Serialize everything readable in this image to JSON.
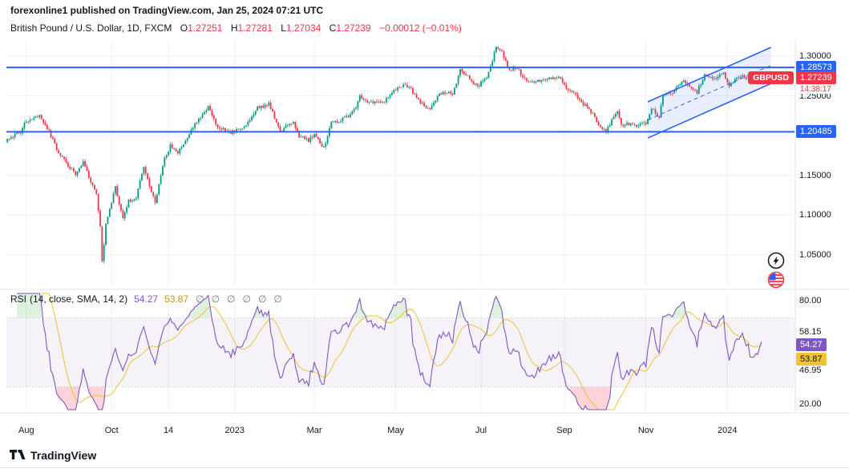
{
  "publish_line": "forexonline1 published on TradingView.com, Jan 25, 2024 07:21 UTC",
  "header": {
    "symbol_title": "British Pound / U.S. Dollar, 1D, FXCM",
    "ohlc": {
      "o_label": "O",
      "o": "1.27251",
      "h_label": "H",
      "h": "1.27281",
      "l_label": "L",
      "l": "1.27034",
      "c_label": "C",
      "c": "1.27239",
      "change": "−0.00012 (−0.01%)"
    }
  },
  "price_axis": {
    "ticks": [
      "1.30000",
      "1.25000",
      "1.20000",
      "1.15000",
      "1.10000",
      "1.05000"
    ],
    "tick_values": [
      1.3,
      1.25,
      1.2,
      1.15,
      1.1,
      1.05
    ]
  },
  "levels": {
    "upper": {
      "label": "1.28573",
      "value": 1.28573
    },
    "lower": {
      "label": "1.20485",
      "value": 1.20485
    }
  },
  "last_price": {
    "symbol_label": "GBPUSD",
    "price_label": "1.27239",
    "value": 1.27239,
    "countdown": "14:38:17"
  },
  "time_axis": {
    "labels": [
      {
        "text": "Aug",
        "date": "2022-08-01"
      },
      {
        "text": "Oct",
        "date": "2022-10-03"
      },
      {
        "text": "14",
        "date": "2022-11-14"
      },
      {
        "text": "2023",
        "date": "2023-01-02"
      },
      {
        "text": "Mar",
        "date": "2023-03-01"
      },
      {
        "text": "May",
        "date": "2023-05-01"
      },
      {
        "text": "Jul",
        "date": "2023-07-03"
      },
      {
        "text": "Sep",
        "date": "2023-09-01"
      },
      {
        "text": "Nov",
        "date": "2023-11-01"
      },
      {
        "text": "2024",
        "date": "2024-01-01"
      }
    ]
  },
  "channel": {
    "start_date": "2023-11-02",
    "end_date": "2024-02-01",
    "lower_start": 1.197,
    "lower_end": 1.2655,
    "width": 0.0455
  },
  "rsi": {
    "title": "RSI",
    "params": "(14, close, SMA, 14, 2)",
    "value": "54.27",
    "ma_value": "53.87",
    "value_num": 54.27,
    "ma_num": 53.87,
    "upper_band": 70,
    "lower_band": 30,
    "axis_ticks": [
      {
        "text": "80.00",
        "value": 80
      },
      {
        "text": "20.00",
        "value": 20
      }
    ],
    "band_labels": [
      {
        "text": "58.15",
        "value": 58.15
      },
      {
        "text": "46.95",
        "value": 46.95
      }
    ],
    "setting_icons": [
      "∅",
      "∅",
      "∅",
      "∅",
      "∅",
      "∅"
    ]
  },
  "footer": {
    "brand": "TradingView"
  },
  "colors": {
    "up": "#089981",
    "down": "#F23645",
    "accent_blue": "#2962FF",
    "channel_fill": "rgba(41,98,255,0.10)",
    "grid": "rgba(42,46,57,0.07)",
    "separator": "#E0E3EB",
    "rsi_line": "#7E57C2",
    "rsi_ma": "#F1C232",
    "rsi_band_fill": "rgba(126,87,194,0.08)",
    "oversold_fill": "rgba(242,54,69,0.22)",
    "overbought_fill": "rgba(76,175,80,0.18)",
    "muted_text": "#787B86",
    "axis_text": "#131722",
    "red": "#F23645"
  },
  "chart_data": {
    "type": "candlestick",
    "symbol": "GBPUSD",
    "timeframe": "1D",
    "exchange": "FXCM",
    "start_date": "2022-07-18",
    "end_date": "2024-01-25",
    "ylim": [
      1.013,
      1.322
    ],
    "price_gridlines": [
      1.3,
      1.25,
      1.2,
      1.15,
      1.1,
      1.05
    ],
    "ohlc_last": {
      "open": 1.27251,
      "high": 1.27281,
      "low": 1.27034,
      "close": 1.27239
    },
    "keypoints": [
      [
        "2022-07-18",
        1.196
      ],
      [
        "2022-07-27",
        1.204
      ],
      [
        "2022-08-01",
        1.219
      ],
      [
        "2022-08-10",
        1.224
      ],
      [
        "2022-08-17",
        1.205
      ],
      [
        "2022-08-23",
        1.183
      ],
      [
        "2022-08-31",
        1.162
      ],
      [
        "2022-09-06",
        1.152
      ],
      [
        "2022-09-12",
        1.168
      ],
      [
        "2022-09-16",
        1.142
      ],
      [
        "2022-09-21",
        1.127
      ],
      [
        "2022-09-23",
        1.086
      ],
      [
        "2022-09-26",
        1.04
      ],
      [
        "2022-09-28",
        1.089
      ],
      [
        "2022-10-05",
        1.135
      ],
      [
        "2022-10-11",
        1.097
      ],
      [
        "2022-10-14",
        1.118
      ],
      [
        "2022-10-20",
        1.122
      ],
      [
        "2022-10-26",
        1.161
      ],
      [
        "2022-11-03",
        1.116
      ],
      [
        "2022-11-10",
        1.171
      ],
      [
        "2022-11-15",
        1.187
      ],
      [
        "2022-11-21",
        1.179
      ],
      [
        "2022-11-30",
        1.206
      ],
      [
        "2022-12-05",
        1.219
      ],
      [
        "2022-12-13",
        1.236
      ],
      [
        "2022-12-20",
        1.211
      ],
      [
        "2022-12-29",
        1.204
      ],
      [
        "2023-01-06",
        1.209
      ],
      [
        "2023-01-13",
        1.223
      ],
      [
        "2023-01-18",
        1.235
      ],
      [
        "2023-01-26",
        1.24
      ],
      [
        "2023-02-03",
        1.205
      ],
      [
        "2023-02-09",
        1.212
      ],
      [
        "2023-02-14",
        1.217
      ],
      [
        "2023-02-17",
        1.199
      ],
      [
        "2023-02-24",
        1.194
      ],
      [
        "2023-03-01",
        1.202
      ],
      [
        "2023-03-08",
        1.184
      ],
      [
        "2023-03-14",
        1.216
      ],
      [
        "2023-03-17",
        1.218
      ],
      [
        "2023-03-24",
        1.223
      ],
      [
        "2023-03-31",
        1.233
      ],
      [
        "2023-04-04",
        1.25
      ],
      [
        "2023-04-10",
        1.241
      ],
      [
        "2023-04-14",
        1.241
      ],
      [
        "2023-04-21",
        1.244
      ],
      [
        "2023-04-28",
        1.257
      ],
      [
        "2023-05-05",
        1.263
      ],
      [
        "2023-05-10",
        1.262
      ],
      [
        "2023-05-18",
        1.241
      ],
      [
        "2023-05-25",
        1.232
      ],
      [
        "2023-06-01",
        1.252
      ],
      [
        "2023-06-08",
        1.256
      ],
      [
        "2023-06-12",
        1.251
      ],
      [
        "2023-06-16",
        1.282
      ],
      [
        "2023-06-23",
        1.272
      ],
      [
        "2023-06-29",
        1.261
      ],
      [
        "2023-07-06",
        1.274
      ],
      [
        "2023-07-11",
        1.293
      ],
      [
        "2023-07-13",
        1.313
      ],
      [
        "2023-07-18",
        1.304
      ],
      [
        "2023-07-24",
        1.282
      ],
      [
        "2023-07-28",
        1.285
      ],
      [
        "2023-08-03",
        1.271
      ],
      [
        "2023-08-10",
        1.268
      ],
      [
        "2023-08-15",
        1.27
      ],
      [
        "2023-08-23",
        1.272
      ],
      [
        "2023-08-30",
        1.272
      ],
      [
        "2023-09-05",
        1.256
      ],
      [
        "2023-09-11",
        1.251
      ],
      [
        "2023-09-14",
        1.241
      ],
      [
        "2023-09-20",
        1.234
      ],
      [
        "2023-09-26",
        1.218
      ],
      [
        "2023-10-03",
        1.204
      ],
      [
        "2023-10-06",
        1.22
      ],
      [
        "2023-10-11",
        1.231
      ],
      [
        "2023-10-13",
        1.214
      ],
      [
        "2023-10-18",
        1.214
      ],
      [
        "2023-10-26",
        1.213
      ],
      [
        "2023-11-01",
        1.215
      ],
      [
        "2023-11-06",
        1.234
      ],
      [
        "2023-11-10",
        1.222
      ],
      [
        "2023-11-14",
        1.25
      ],
      [
        "2023-11-21",
        1.254
      ],
      [
        "2023-11-29",
        1.269
      ],
      [
        "2023-12-05",
        1.259
      ],
      [
        "2023-12-08",
        1.255
      ],
      [
        "2023-12-14",
        1.277
      ],
      [
        "2023-12-22",
        1.27
      ],
      [
        "2023-12-28",
        1.28
      ],
      [
        "2024-01-02",
        1.262
      ],
      [
        "2024-01-05",
        1.272
      ],
      [
        "2024-01-12",
        1.275
      ],
      [
        "2024-01-17",
        1.268
      ],
      [
        "2024-01-23",
        1.27
      ],
      [
        "2024-01-25",
        1.27239
      ]
    ],
    "levels": [
      1.28573,
      1.20485
    ],
    "indicators": [
      {
        "type": "RSI",
        "length": 14,
        "source": "close",
        "ma": "SMA 14",
        "last": 54.27,
        "ma_last": 53.87,
        "bands": [
          70,
          30
        ]
      }
    ]
  }
}
